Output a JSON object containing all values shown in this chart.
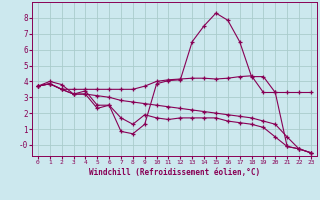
{
  "xlabel": "Windchill (Refroidissement éolien,°C)",
  "bg_color": "#cce8ee",
  "grid_color": "#aacccc",
  "line_color": "#880055",
  "xlim": [
    -0.5,
    23.5
  ],
  "ylim": [
    -0.7,
    9.0
  ],
  "yticks": [
    0,
    1,
    2,
    3,
    4,
    5,
    6,
    7,
    8
  ],
  "ytick_labels": [
    "-0",
    "1",
    "2",
    "3",
    "4",
    "5",
    "6",
    "7",
    "8"
  ],
  "xticks": [
    0,
    1,
    2,
    3,
    4,
    5,
    6,
    7,
    8,
    9,
    10,
    11,
    12,
    13,
    14,
    15,
    16,
    17,
    18,
    19,
    20,
    21,
    22,
    23
  ],
  "lines": [
    {
      "x": [
        0,
        1,
        2,
        3,
        4,
        5,
        6,
        7,
        8,
        9,
        10,
        11,
        12,
        13,
        14,
        15,
        16,
        17,
        18,
        19,
        20,
        21,
        22,
        23
      ],
      "y": [
        3.7,
        4.0,
        3.8,
        3.2,
        3.4,
        2.5,
        2.5,
        0.85,
        0.7,
        1.3,
        3.85,
        4.05,
        4.1,
        6.5,
        7.5,
        8.3,
        7.85,
        6.5,
        4.3,
        4.3,
        3.3,
        -0.1,
        -0.25,
        -0.5
      ]
    },
    {
      "x": [
        0,
        1,
        2,
        3,
        4,
        5,
        6,
        7,
        8,
        9,
        10,
        11,
        12,
        13,
        14,
        15,
        16,
        17,
        18,
        19,
        20,
        21,
        22,
        23
      ],
      "y": [
        3.7,
        3.85,
        3.5,
        3.5,
        3.5,
        3.5,
        3.5,
        3.5,
        3.5,
        3.7,
        4.0,
        4.1,
        4.15,
        4.2,
        4.2,
        4.15,
        4.2,
        4.3,
        4.35,
        3.3,
        3.3,
        3.3,
        3.3,
        3.3
      ]
    },
    {
      "x": [
        0,
        1,
        2,
        3,
        4,
        5,
        6,
        7,
        8,
        9,
        10,
        11,
        12,
        13,
        14,
        15,
        16,
        17,
        18,
        19,
        20,
        21,
        22,
        23
      ],
      "y": [
        3.7,
        3.85,
        3.5,
        3.2,
        3.2,
        2.3,
        2.5,
        1.7,
        1.3,
        1.9,
        1.7,
        1.6,
        1.7,
        1.7,
        1.7,
        1.7,
        1.5,
        1.4,
        1.3,
        1.1,
        0.5,
        -0.1,
        -0.25,
        -0.5
      ]
    },
    {
      "x": [
        0,
        1,
        2,
        3,
        4,
        5,
        6,
        7,
        8,
        9,
        10,
        11,
        12,
        13,
        14,
        15,
        16,
        17,
        18,
        19,
        20,
        21,
        22,
        23
      ],
      "y": [
        3.7,
        3.85,
        3.5,
        3.2,
        3.2,
        3.1,
        3.0,
        2.8,
        2.7,
        2.6,
        2.5,
        2.4,
        2.3,
        2.2,
        2.1,
        2.0,
        1.9,
        1.8,
        1.7,
        1.5,
        1.3,
        0.5,
        -0.25,
        -0.5
      ]
    }
  ]
}
